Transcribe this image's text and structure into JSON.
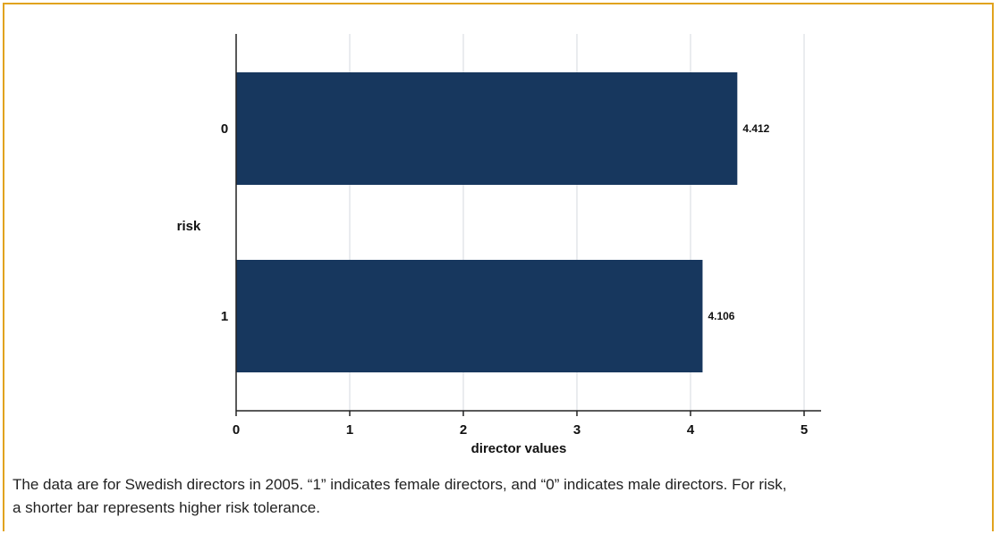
{
  "chart_data": {
    "type": "bar",
    "orientation": "horizontal",
    "categories": [
      "0",
      "1"
    ],
    "values": [
      4.412,
      4.106
    ],
    "data_labels": [
      "4.412",
      "4.106"
    ],
    "xlabel": "director values",
    "ylabel": "risk",
    "xlim": [
      0,
      5
    ],
    "x_ticks": [
      "0",
      "1",
      "2",
      "3",
      "4",
      "5"
    ],
    "grid": "vertical",
    "bar_color": "#17375e"
  },
  "caption": {
    "line1": "The data are for Swedish directors in 2005. “1” indicates female directors, and “0” indicates male directors. For risk,",
    "line2": "a shorter bar represents higher risk tolerance."
  },
  "colors": {
    "frame": "#e1a31f"
  }
}
